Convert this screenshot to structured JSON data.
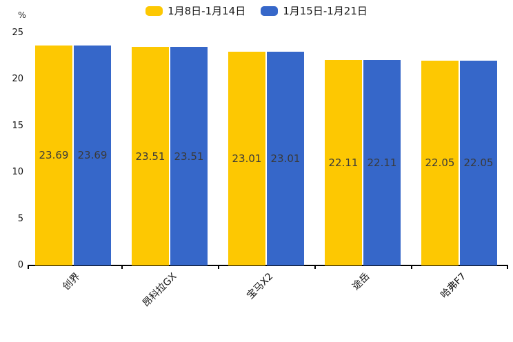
{
  "chart_data": {
    "type": "bar",
    "title": "",
    "unit_label": "%",
    "categories": [
      "创界",
      "昂科拉GX",
      "宝马X2",
      "途岳",
      "哈弗F7"
    ],
    "series": [
      {
        "name": "1月8日-1月14日",
        "color": "#FDC802",
        "values": [
          23.69,
          23.51,
          23.01,
          22.11,
          22.05
        ]
      },
      {
        "name": "1月15日-1月21日",
        "color": "#3667C9",
        "values": [
          23.69,
          23.51,
          23.01,
          22.11,
          22.05
        ]
      }
    ],
    "value_labels": [
      "23.69",
      "23.51",
      "23.01",
      "22.11",
      "22.05"
    ],
    "y_ticks": [
      0,
      5,
      10,
      15,
      20,
      25
    ],
    "ylim": [
      0,
      25
    ],
    "grid": false,
    "legend_position": "top",
    "value_label_position": "inside-middle",
    "bar_value_text_color": "#3a3a3a",
    "axis_color": "#000000"
  }
}
